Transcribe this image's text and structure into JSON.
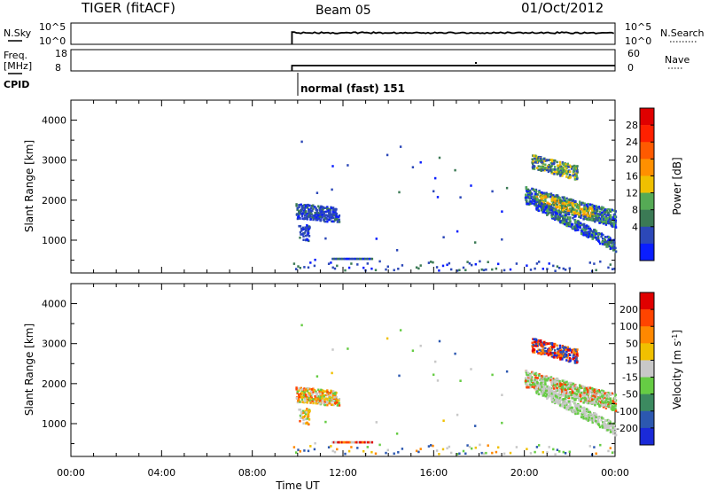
{
  "header": {
    "station": "TIGER (fitACF)",
    "beam": "Beam 05",
    "date": "01/Oct/2012"
  },
  "params": {
    "nsky_label": "N.Sky",
    "nsky_ticks": [
      "10^5",
      "10^0"
    ],
    "nsearch_label": "N.Search",
    "nsearch_ticks": [
      "10^5",
      "10^0"
    ],
    "freq_label": "Freq.",
    "freq_unit": "[MHz]",
    "freq_ticks": [
      "18",
      "8"
    ],
    "nave_label": "Nave",
    "nave_ticks": [
      "60",
      "0"
    ],
    "cpid_label": "CPID",
    "cpid_value": "normal (fast) 151"
  },
  "chart_data": [
    {
      "type": "heatmap",
      "name": "power",
      "ylabel": "Slant Range [km]",
      "xlabel": "Time UT",
      "xlim": [
        "00:00",
        "24:00"
      ],
      "x_ticks": [
        "00:00",
        "04:00",
        "08:00",
        "12:00",
        "16:00",
        "20:00",
        "00:00"
      ],
      "ylim": [
        180,
        4500
      ],
      "y_ticks": [
        "1000",
        "2000",
        "3000",
        "4000"
      ],
      "colorbar": {
        "label": "Power [dB]",
        "ticks": [
          "4",
          "8",
          "12",
          "16",
          "20",
          "24",
          "28"
        ],
        "colors": [
          "#0a1eff",
          "#2c48b8",
          "#3b7a55",
          "#55aa55",
          "#f0c000",
          "#ff9000",
          "#ff5a00",
          "#ff2000",
          "#e00000"
        ]
      },
      "data_start": "09:45"
    },
    {
      "type": "heatmap",
      "name": "velocity",
      "ylabel": "Slant Range [km]",
      "xlabel": "Time UT",
      "xlim": [
        "00:00",
        "24:00"
      ],
      "x_ticks": [
        "00:00",
        "04:00",
        "08:00",
        "12:00",
        "16:00",
        "20:00",
        "00:00"
      ],
      "ylim": [
        180,
        4500
      ],
      "y_ticks": [
        "1000",
        "2000",
        "3000",
        "4000"
      ],
      "colorbar": {
        "label": "Velocity [m s",
        "label_sup": "-1",
        "label_end": "]",
        "ticks": [
          "200",
          "100",
          "50",
          "15",
          "-15",
          "-50",
          "-100",
          "-200"
        ],
        "colors": [
          "#1a2ad8",
          "#2c58b0",
          "#3c8a60",
          "#66cc44",
          "#c8c8c8",
          "#f0c000",
          "#ff8800",
          "#ff4400",
          "#e00000"
        ]
      }
    }
  ]
}
